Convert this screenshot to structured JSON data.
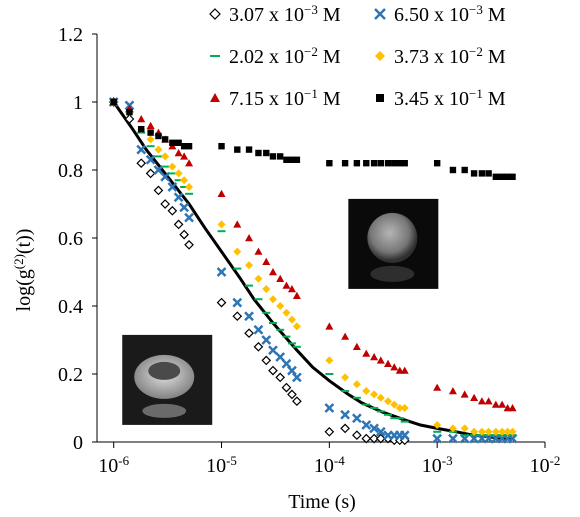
{
  "chart_data": {
    "type": "scatter",
    "xlabel": "Time (s)",
    "ylabel_base": "log(g",
    "ylabel_sup": "(2)",
    "ylabel_tail": "(t))",
    "x_scale": "log",
    "xlim": [
      7e-07,
      0.01
    ],
    "ylim": [
      0,
      1.2
    ],
    "x_ticks": [
      {
        "value": 1e-06,
        "base": "10",
        "exp": "-6"
      },
      {
        "value": 1e-05,
        "base": "10",
        "exp": "-5"
      },
      {
        "value": 0.0001,
        "base": "10",
        "exp": "-4"
      },
      {
        "value": 0.001,
        "base": "10",
        "exp": "-3"
      },
      {
        "value": 0.01,
        "base": "10",
        "exp": "-2"
      }
    ],
    "y_ticks": [
      {
        "value": 0,
        "label": "0"
      },
      {
        "value": 0.2,
        "label": "0.2"
      },
      {
        "value": 0.4,
        "label": "0.4"
      },
      {
        "value": 0.6,
        "label": "0.6"
      },
      {
        "value": 0.8,
        "label": "0.8"
      },
      {
        "value": 1,
        "label": "1"
      },
      {
        "value": 1.2,
        "label": "1.2"
      }
    ],
    "grid": false,
    "legend_position": "top-right",
    "series": [
      {
        "name_pre": "3.07 x 10",
        "name_exp": "−3",
        "name_post": " M",
        "marker": "diamond-open",
        "color": "#000000",
        "x": [
          1e-06,
          1.4e-06,
          1.8e-06,
          2.2e-06,
          2.6e-06,
          3e-06,
          3.5e-06,
          4e-06,
          4.5e-06,
          5e-06,
          1e-05,
          1.4e-05,
          1.8e-05,
          2.2e-05,
          2.6e-05,
          3e-05,
          3.5e-05,
          4e-05,
          4.5e-05,
          5e-05,
          0.0001,
          0.00014,
          0.00018,
          0.00022,
          0.00026,
          0.0003,
          0.00035,
          0.0004,
          0.00045,
          0.0005
        ],
        "y": [
          1.0,
          0.95,
          0.82,
          0.79,
          0.74,
          0.7,
          0.68,
          0.64,
          0.61,
          0.58,
          0.41,
          0.37,
          0.32,
          0.28,
          0.24,
          0.21,
          0.19,
          0.16,
          0.14,
          0.12,
          0.03,
          0.04,
          0.02,
          0.01,
          0.01,
          0.01,
          0.01,
          0.005,
          0.005,
          0.005
        ]
      },
      {
        "name_pre": "6.50 x 10",
        "name_exp": "−3",
        "name_post": " M",
        "marker": "x",
        "color": "#2e75b6",
        "x": [
          1e-06,
          1.4e-06,
          1.8e-06,
          2.2e-06,
          2.6e-06,
          3e-06,
          3.5e-06,
          4e-06,
          4.5e-06,
          5e-06,
          1e-05,
          1.4e-05,
          1.8e-05,
          2.2e-05,
          2.6e-05,
          3e-05,
          3.5e-05,
          4e-05,
          4.5e-05,
          5e-05,
          0.0001,
          0.00014,
          0.00018,
          0.00022,
          0.00026,
          0.0003,
          0.00035,
          0.0004,
          0.00045,
          0.0005,
          0.001,
          0.0014,
          0.0018,
          0.0022,
          0.0026,
          0.003,
          0.0035,
          0.004,
          0.0045,
          0.005
        ],
        "y": [
          1.0,
          0.99,
          0.86,
          0.83,
          0.8,
          0.78,
          0.75,
          0.72,
          0.69,
          0.66,
          0.5,
          0.41,
          0.37,
          0.33,
          0.3,
          0.27,
          0.25,
          0.23,
          0.21,
          0.19,
          0.1,
          0.08,
          0.07,
          0.05,
          0.04,
          0.03,
          0.02,
          0.02,
          0.02,
          0.02,
          0.01,
          0.01,
          0.01,
          0.01,
          0.01,
          0.01,
          0.01,
          0.01,
          0.01,
          0.01
        ]
      },
      {
        "name_pre": "2.02 x 10",
        "name_exp": "−2",
        "name_post": " M",
        "marker": "dash",
        "color": "#00b050",
        "x": [
          1e-06,
          1.4e-06,
          1.8e-06,
          2.2e-06,
          2.6e-06,
          3e-06,
          3.5e-06,
          4e-06,
          4.5e-06,
          5e-06,
          1e-05,
          1.4e-05,
          1.8e-05,
          2.2e-05,
          2.6e-05,
          3e-05,
          3.5e-05,
          4e-05,
          4.5e-05,
          5e-05,
          0.0001,
          0.00014,
          0.00018,
          0.00022,
          0.00026,
          0.0003,
          0.00035,
          0.0004,
          0.00045,
          0.0005,
          0.001,
          0.0014,
          0.0018,
          0.0022,
          0.0026,
          0.003,
          0.0035,
          0.004,
          0.0045,
          0.005
        ],
        "y": [
          1.0,
          0.97,
          0.91,
          0.87,
          0.84,
          0.81,
          0.79,
          0.77,
          0.75,
          0.73,
          0.62,
          0.51,
          0.46,
          0.42,
          0.38,
          0.35,
          0.33,
          0.31,
          0.29,
          0.28,
          0.2,
          0.15,
          0.13,
          0.11,
          0.1,
          0.09,
          0.08,
          0.07,
          0.07,
          0.06,
          0.03,
          0.03,
          0.02,
          0.02,
          0.02,
          0.02,
          0.02,
          0.02,
          0.02,
          0.02
        ]
      },
      {
        "name_pre": "3.73 x 10",
        "name_exp": "−2",
        "name_post": " M",
        "marker": "diamond-filled",
        "color": "#ffc000",
        "x": [
          1e-06,
          1.4e-06,
          1.8e-06,
          2.2e-06,
          2.6e-06,
          3e-06,
          3.5e-06,
          4e-06,
          4.5e-06,
          5e-06,
          1e-05,
          1.4e-05,
          1.8e-05,
          2.2e-05,
          2.6e-05,
          3e-05,
          3.5e-05,
          4e-05,
          4.5e-05,
          5e-05,
          0.0001,
          0.00014,
          0.00018,
          0.00022,
          0.00026,
          0.0003,
          0.00035,
          0.0004,
          0.00045,
          0.0005,
          0.001,
          0.0014,
          0.0018,
          0.0022,
          0.0026,
          0.003,
          0.0035,
          0.004,
          0.0045,
          0.005
        ],
        "y": [
          1.0,
          0.97,
          0.92,
          0.89,
          0.86,
          0.84,
          0.81,
          0.79,
          0.77,
          0.75,
          0.64,
          0.56,
          0.52,
          0.48,
          0.45,
          0.42,
          0.4,
          0.38,
          0.36,
          0.34,
          0.24,
          0.19,
          0.17,
          0.15,
          0.14,
          0.13,
          0.12,
          0.11,
          0.1,
          0.1,
          0.05,
          0.04,
          0.04,
          0.03,
          0.03,
          0.03,
          0.03,
          0.03,
          0.03,
          0.03
        ]
      },
      {
        "name_pre": "7.15 x 10",
        "name_exp": "−1",
        "name_post": " M",
        "marker": "triangle",
        "color": "#c00000",
        "x": [
          1e-06,
          1.4e-06,
          1.8e-06,
          2.2e-06,
          2.6e-06,
          3e-06,
          3.5e-06,
          4e-06,
          4.5e-06,
          5e-06,
          1e-05,
          1.4e-05,
          1.8e-05,
          2.2e-05,
          2.6e-05,
          3e-05,
          3.5e-05,
          4e-05,
          4.5e-05,
          5e-05,
          0.0001,
          0.00014,
          0.00018,
          0.00022,
          0.00026,
          0.0003,
          0.00035,
          0.0004,
          0.00045,
          0.0005,
          0.001,
          0.0014,
          0.0018,
          0.0022,
          0.0026,
          0.003,
          0.0035,
          0.004,
          0.0045,
          0.005
        ],
        "y": [
          1.0,
          0.98,
          0.95,
          0.93,
          0.91,
          0.89,
          0.87,
          0.85,
          0.84,
          0.82,
          0.73,
          0.64,
          0.6,
          0.56,
          0.53,
          0.5,
          0.48,
          0.46,
          0.45,
          0.43,
          0.34,
          0.31,
          0.28,
          0.26,
          0.25,
          0.24,
          0.23,
          0.22,
          0.21,
          0.21,
          0.16,
          0.15,
          0.14,
          0.13,
          0.12,
          0.12,
          0.11,
          0.11,
          0.1,
          0.1
        ]
      },
      {
        "name_pre": "3.45 x 10",
        "name_exp": "−1",
        "name_post": " M",
        "marker": "square",
        "color": "#000000",
        "x": [
          1e-06,
          1.4e-06,
          1.8e-06,
          2.2e-06,
          2.6e-06,
          3e-06,
          3.5e-06,
          4e-06,
          4.5e-06,
          5e-06,
          1e-05,
          1.4e-05,
          1.8e-05,
          2.2e-05,
          2.6e-05,
          3e-05,
          3.5e-05,
          4e-05,
          4.5e-05,
          5e-05,
          0.0001,
          0.00014,
          0.00018,
          0.00022,
          0.00026,
          0.0003,
          0.00035,
          0.0004,
          0.00045,
          0.0005,
          0.001,
          0.0014,
          0.0018,
          0.0022,
          0.0026,
          0.003,
          0.0035,
          0.004,
          0.0045,
          0.005
        ],
        "y": [
          1.0,
          0.97,
          0.92,
          0.91,
          0.9,
          0.89,
          0.88,
          0.88,
          0.87,
          0.87,
          0.87,
          0.86,
          0.86,
          0.85,
          0.85,
          0.84,
          0.84,
          0.83,
          0.83,
          0.83,
          0.82,
          0.82,
          0.82,
          0.82,
          0.82,
          0.82,
          0.82,
          0.82,
          0.82,
          0.82,
          0.82,
          0.8,
          0.8,
          0.79,
          0.79,
          0.79,
          0.78,
          0.78,
          0.78,
          0.78
        ]
      }
    ],
    "fit_line": {
      "color": "#000000",
      "x": [
        1e-06,
        1.5e-06,
        2e-06,
        3e-06,
        5e-06,
        7e-06,
        1e-05,
        1.5e-05,
        2e-05,
        3e-05,
        5e-05,
        7e-05,
        0.0001,
        0.00015,
        0.0002,
        0.0003,
        0.0005,
        0.0007,
        0.001,
        0.0015,
        0.002,
        0.003,
        0.005
      ],
      "y": [
        1.0,
        0.92,
        0.86,
        0.79,
        0.7,
        0.63,
        0.56,
        0.48,
        0.42,
        0.35,
        0.27,
        0.22,
        0.18,
        0.14,
        0.115,
        0.09,
        0.065,
        0.05,
        0.04,
        0.03,
        0.022,
        0.015,
        0.008
      ]
    },
    "insets": [
      {
        "id": "inset-sphere",
        "x_anchor": 0.00015,
        "y_anchor": 0.715
      },
      {
        "id": "inset-ring",
        "x_anchor": 1.2e-06,
        "y_anchor": 0.315
      }
    ]
  }
}
